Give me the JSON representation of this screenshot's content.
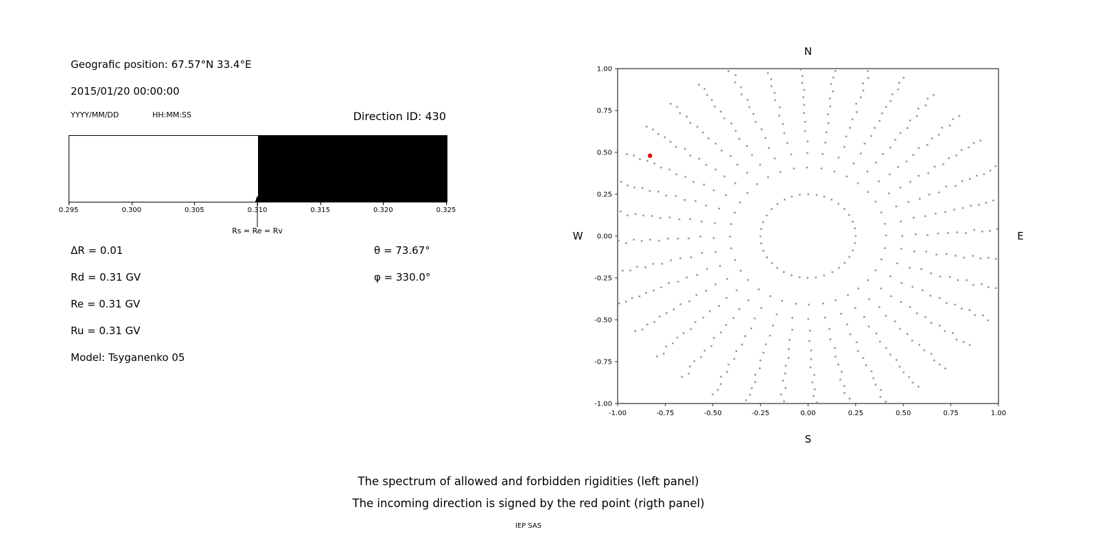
{
  "left_panel": {
    "geo_position": "Geografic position: 67.57°N 33.4°E",
    "datetime": "2015/01/20 00:00:00",
    "date_format": "YYYY/MM/DD",
    "time_format": "HH:MM:SS",
    "params": {
      "delta_r": "ΔR = 0.01",
      "theta": "θ = 73.67°",
      "rd": "Rd = 0.31 GV",
      "phi": "φ = 330.0°",
      "re": "Re = 0.31 GV",
      "ru": "Ru = 0.31 GV",
      "model": "Model: Tsyganenko 05"
    }
  },
  "caption": {
    "line1": "The spectrum of allowed and forbidden rigidities (left panel)",
    "line2": "The incoming direction is signed by the red point (rigth panel)",
    "credit": "IEP SAS"
  },
  "chart_data": [
    {
      "type": "area",
      "title": "Direction ID: 430",
      "xlim": [
        0.295,
        0.325
      ],
      "x_ticks": [
        "0.295",
        "0.300",
        "0.305",
        "0.310",
        "0.315",
        "0.320",
        "0.325"
      ],
      "regions": [
        {
          "name": "allowed",
          "from": 0.295,
          "to": 0.31,
          "color": "#ffffff"
        },
        {
          "name": "forbidden",
          "from": 0.31,
          "to": 0.325,
          "color": "#000000"
        }
      ],
      "annotation": {
        "x": 0.31,
        "label": "Rs = Re = Rv"
      }
    },
    {
      "type": "scatter",
      "xlim": [
        -1,
        1
      ],
      "ylim": [
        -1,
        1
      ],
      "x_ticks": [
        "-1.00",
        "-0.75",
        "-0.50",
        "-0.25",
        "0.00",
        "0.25",
        "0.50",
        "0.75",
        "1.00"
      ],
      "y_ticks": [
        "1.00",
        "0.75",
        "0.50",
        "0.25",
        "0.00",
        "-0.25",
        "-0.50",
        "-0.75",
        "-1.00"
      ],
      "compass": {
        "top": "N",
        "bottom": "S",
        "left": "W",
        "right": "E"
      },
      "dot_color": "#9a9a9a",
      "red_point": {
        "x": -0.83,
        "y": 0.48,
        "color": "#e8000b",
        "label": "incoming direction"
      },
      "spokes": {
        "count": 36,
        "angle_step_deg": 10,
        "inner_radius": 0.25,
        "outer_radius": 1.07,
        "points_per_spoke": 15
      }
    }
  ]
}
